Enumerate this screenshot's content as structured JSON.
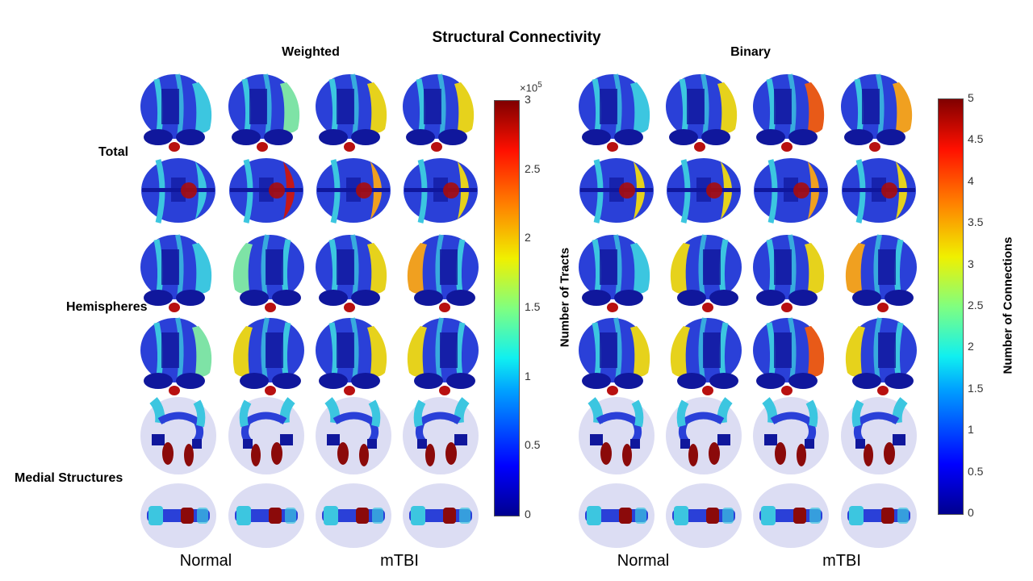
{
  "title": "Structural Connectivity",
  "panels": [
    {
      "subtitle": "Weighted",
      "colorbar": {
        "label": "Number of Tracts",
        "exponent_base": "×10",
        "exponent_power": "5",
        "range": [
          0,
          3
        ],
        "ticks": [
          "0",
          "0.5",
          "1",
          "1.5",
          "2",
          "2.5",
          "3"
        ]
      },
      "group_labels": [
        "Normal",
        "mTBI"
      ]
    },
    {
      "subtitle": "Binary",
      "colorbar": {
        "label": "Number of Connections",
        "range": [
          0,
          5
        ],
        "ticks": [
          "0",
          "0.5",
          "1",
          "1.5",
          "2",
          "2.5",
          "3",
          "3.5",
          "4",
          "4.5",
          "5"
        ]
      },
      "group_labels": [
        "Normal",
        "mTBI"
      ]
    }
  ],
  "row_labels": [
    "Total",
    "Hemispheres",
    "Medial Structures"
  ],
  "colors": {
    "dark_blue": "#10179c",
    "blue": "#2a40d8",
    "cyan": "#3cc6e0",
    "green": "#7ee3a6",
    "yellow": "#e6d21c",
    "orange": "#f0a020",
    "red_orange": "#e85a18",
    "dark_red": "#8b0a0a",
    "glass": "#c9cbec"
  },
  "cells": [
    [
      "cyan",
      "green",
      "yellow",
      "yellow",
      "cyan",
      "yellow",
      "red_orange",
      "orange"
    ],
    [
      "cyan",
      "red",
      "orange",
      "yellow",
      "yellow",
      "yellow",
      "orange",
      "yellow"
    ],
    [
      "cyan",
      "green",
      "yellow",
      "orange",
      "cyan",
      "yellow",
      "yellow",
      "orange"
    ],
    [
      "green",
      "yellow",
      "yellow",
      "yellow",
      "yellow",
      "yellow",
      "red_orange",
      "yellow"
    ],
    [
      "medial",
      "medial",
      "medial",
      "medial",
      "medial",
      "medial",
      "medial",
      "medial"
    ],
    [
      "axial",
      "axial",
      "axial",
      "axial",
      "axial",
      "axial",
      "axial",
      "axial"
    ]
  ]
}
